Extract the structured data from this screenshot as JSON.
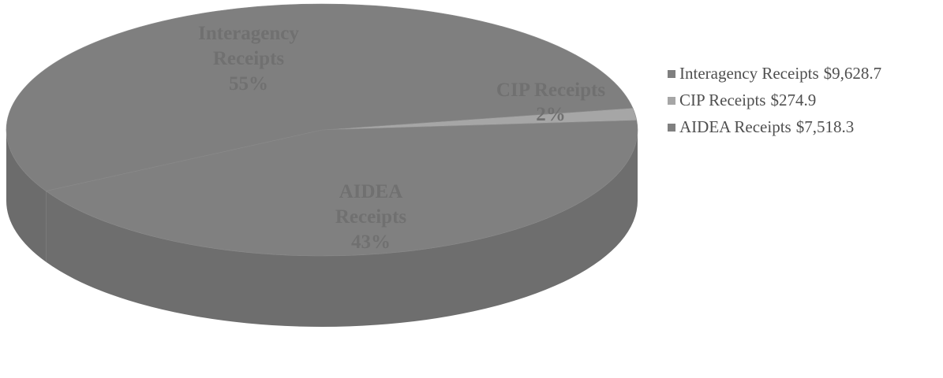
{
  "chart_data": {
    "type": "pie",
    "title": "",
    "slices": [
      {
        "key": "interagency",
        "name": "Interagency Receipts",
        "value_label": "$9,628.7",
        "value": 9628.7,
        "percent_label": "55%",
        "label_lines": [
          "Interagency",
          "Receipts",
          "55%"
        ],
        "color": "#7f7f7f",
        "side_color": "#6c6c6c"
      },
      {
        "key": "cip",
        "name": "CIP Receipts",
        "value_label": "$274.9",
        "value": 274.9,
        "percent_label": "2%",
        "label_lines": [
          "CIP Receipts",
          "2%"
        ],
        "color": "#a6a6a6",
        "side_color": "#8e8e8e"
      },
      {
        "key": "aidea",
        "name": "AIDEA Receipts",
        "value_label": "$7,518.3",
        "value": 7518.3,
        "percent_label": "43%",
        "label_lines": [
          "AIDEA",
          "Receipts",
          "43%"
        ],
        "color": "#808080",
        "side_color": "#6e6e6e"
      }
    ],
    "legend_position": "right",
    "style": "3d"
  }
}
